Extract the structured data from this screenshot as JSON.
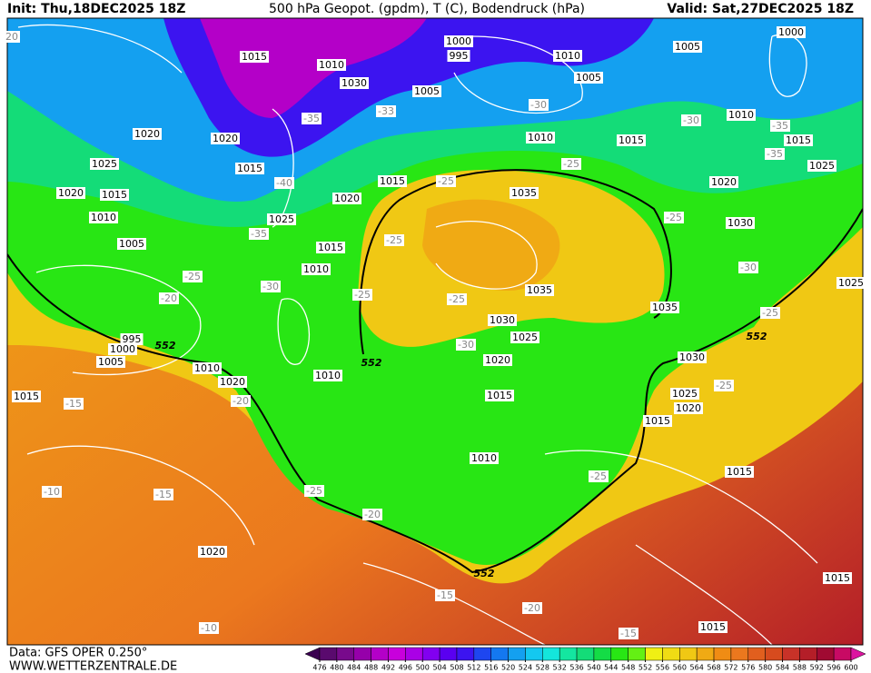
{
  "header": {
    "init": "Init: Thu,18DEC2025 18Z",
    "title": "500 hPa Geopot. (gpdm), T (C), Bodendruck (hPa)",
    "valid": "Valid: Sat,27DEC2025 18Z"
  },
  "footer": {
    "data": "Data: GFS OPER 0.250°",
    "site": "WWW.WETTERZENTRALE.DE"
  },
  "colorbar": {
    "ticks": [
      476,
      480,
      484,
      488,
      492,
      496,
      500,
      504,
      508,
      512,
      516,
      520,
      524,
      528,
      532,
      536,
      540,
      544,
      548,
      552,
      556,
      560,
      564,
      568,
      572,
      576,
      580,
      584,
      588,
      592,
      596,
      600
    ],
    "colors": [
      "#3a0050",
      "#5a0a6e",
      "#780a8c",
      "#9600aa",
      "#b400c8",
      "#c800dc",
      "#aa00e6",
      "#8200f0",
      "#5a00f0",
      "#3c14f0",
      "#1e46f0",
      "#1478f0",
      "#14a0f0",
      "#14c8f0",
      "#14e6dc",
      "#14e6a0",
      "#14dc78",
      "#14dc46",
      "#28e614",
      "#64f014",
      "#f0f014",
      "#f0dc14",
      "#f0c814",
      "#f0aa14",
      "#f08c14",
      "#eb781e",
      "#e15f1e",
      "#d74b1e",
      "#c83228",
      "#b41e28",
      "#a00a32",
      "#c80a64",
      "#dc14a0"
    ]
  },
  "pressure_labels": [
    "1015",
    "1010",
    "1030",
    "1005",
    "1000",
    "995",
    "1010",
    "1005",
    "1005",
    "1000",
    "1010",
    "1015",
    "1015",
    "1010",
    "1020",
    "1020",
    "1015",
    "1025",
    "1020",
    "1015",
    "1010",
    "1005",
    "1035",
    "1020",
    "1015",
    "1025",
    "1015",
    "1010",
    "1035",
    "1030",
    "1025",
    "1020",
    "1015",
    "1010",
    "1020",
    "1010",
    "995",
    "1000",
    "1005",
    "1015",
    "1035",
    "1030",
    "1025",
    "1020",
    "1015",
    "1010",
    "1015",
    "1020",
    "1015",
    "1015",
    "1030",
    "1025",
    "1020",
    "1025"
  ],
  "temperature_labels": [
    "-30",
    "-30",
    "-35",
    "-35",
    "-33",
    "-35",
    "-40",
    "-35",
    "-25",
    "-25",
    "-25",
    "-30",
    "-25",
    "-25",
    "-25",
    "-25",
    "-30",
    "-25",
    "-20",
    "-30",
    "-20",
    "-15",
    "-10",
    "-15",
    "-25",
    "-20",
    "-25",
    "-25",
    "-15",
    "-20",
    "-15",
    "-10",
    "20"
  ],
  "contour_552_labels": [
    "552",
    "552",
    "552",
    "552"
  ]
}
